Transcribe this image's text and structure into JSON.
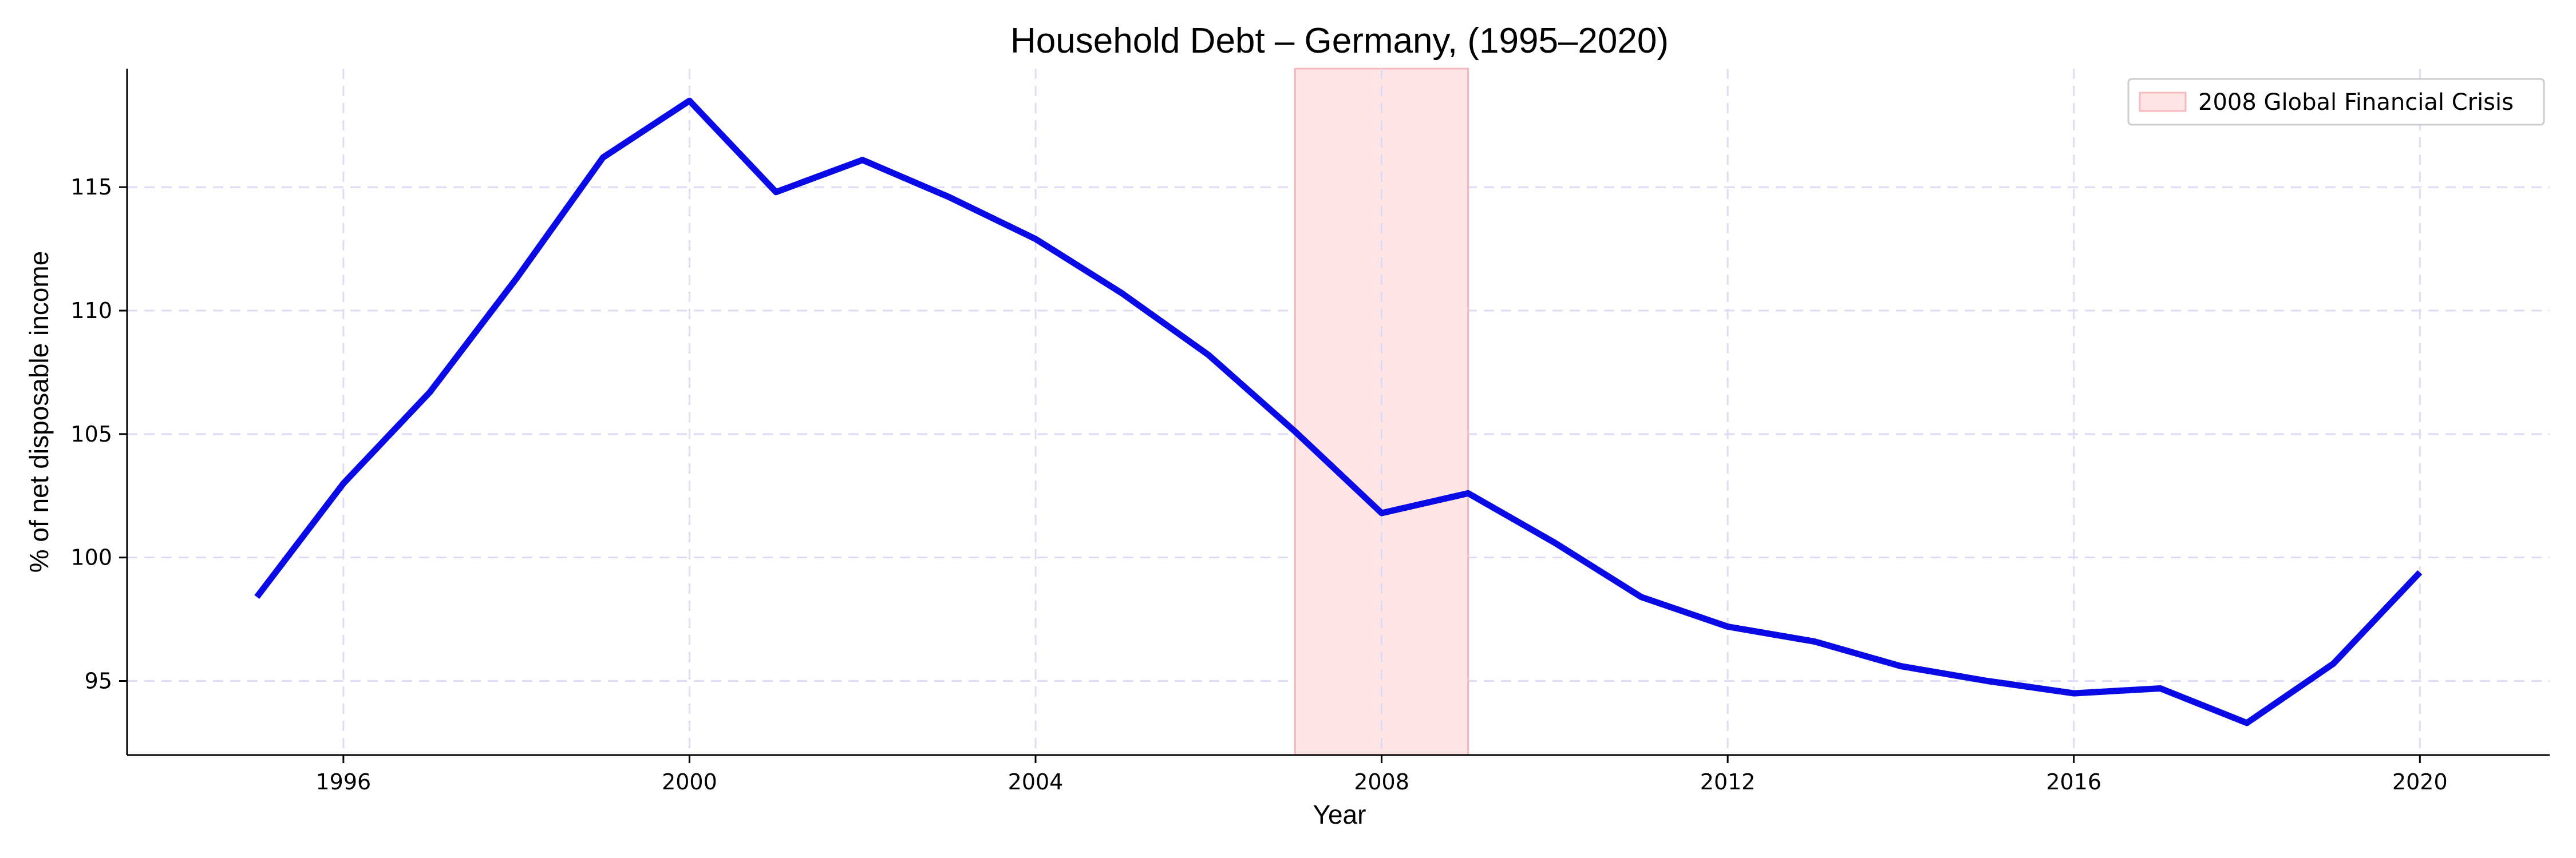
{
  "chart_data": {
    "type": "line",
    "title": "Household Debt – Germany, (1995–2020)",
    "xlabel": "Year",
    "ylabel": "% of net disposable income",
    "xlim": [
      1993.5,
      2021.5
    ],
    "ylim": [
      92.0,
      119.8
    ],
    "xticks": [
      1996,
      2000,
      2004,
      2008,
      2012,
      2016,
      2020
    ],
    "yticks": [
      95,
      100,
      105,
      110,
      115
    ],
    "grid": true,
    "legend_position": "top-right",
    "series": [
      {
        "name": "",
        "color": "#0a0ae6",
        "x": [
          1995,
          1996,
          1997,
          1998,
          1999,
          2000,
          2001,
          2002,
          2003,
          2004,
          2005,
          2006,
          2007,
          2008,
          2009,
          2010,
          2011,
          2012,
          2013,
          2014,
          2015,
          2016,
          2017,
          2018,
          2019,
          2020
        ],
        "y": [
          98.4,
          103.0,
          106.7,
          111.3,
          116.2,
          118.5,
          114.8,
          116.1,
          114.6,
          112.9,
          110.7,
          108.2,
          105.1,
          101.8,
          102.6,
          100.6,
          98.4,
          97.2,
          96.6,
          95.6,
          95.0,
          94.5,
          94.7,
          93.3,
          95.7,
          99.4
        ]
      }
    ],
    "shaded_region": {
      "label": "2008 Global Financial Crisis",
      "x_start": 2007,
      "x_end": 2009,
      "color": "#ffe4e6",
      "edge_color": "#f5b8bc"
    }
  }
}
